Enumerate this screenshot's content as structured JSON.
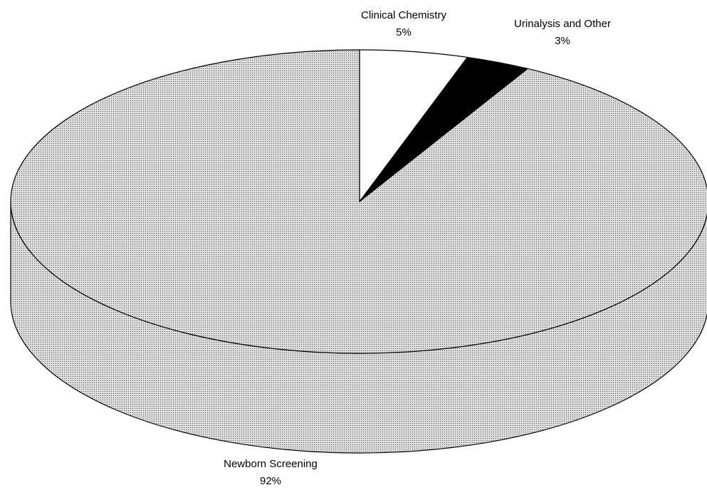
{
  "chart_data": {
    "type": "pie3d",
    "categories": [
      "Clinical Chemistry",
      "Urinalysis and Other",
      "Newborn Screening"
    ],
    "values": [
      5,
      3,
      92
    ],
    "value_labels": [
      "5%",
      "3%",
      "92%"
    ],
    "colors": [
      "#ffffff",
      "#000000",
      "#dcdcdc"
    ]
  }
}
